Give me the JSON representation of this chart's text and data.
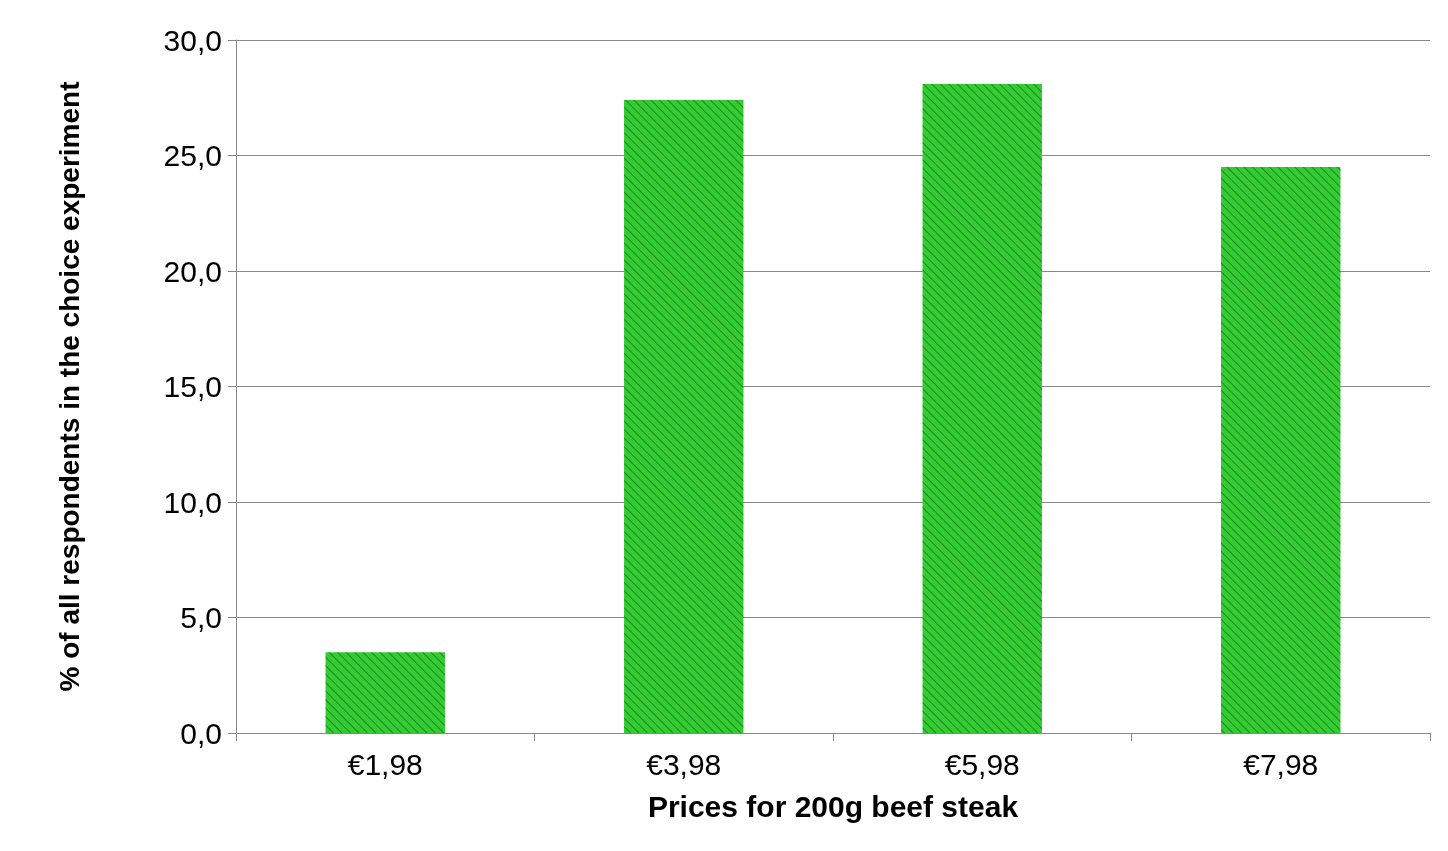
{
  "chart_data": {
    "type": "bar",
    "xlabel": "Prices for 200g beef steak",
    "ylabel": "% of all respondents in the choice experiment",
    "categories": [
      "€1,98",
      "€3,98",
      "€5,98",
      "€7,98"
    ],
    "values": [
      3.5,
      27.4,
      28.1,
      24.5
    ],
    "color": "#33cc33",
    "ylim": [
      0,
      30
    ],
    "yticks": [
      {
        "value": 0,
        "label": "0,0"
      },
      {
        "value": 5,
        "label": "5,0"
      },
      {
        "value": 10,
        "label": "10,0"
      },
      {
        "value": 15,
        "label": "15,0"
      },
      {
        "value": 20,
        "label": "20,0"
      },
      {
        "value": 25,
        "label": "25,0"
      },
      {
        "value": 30,
        "label": "30,0"
      }
    ],
    "grid": "y"
  }
}
